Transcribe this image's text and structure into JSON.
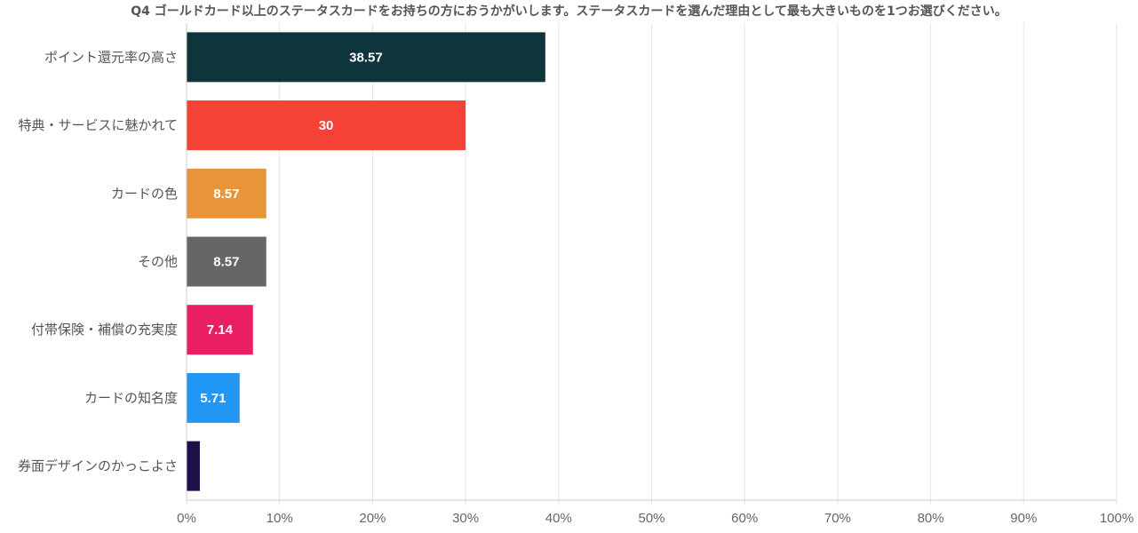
{
  "chart_data": {
    "type": "bar",
    "orientation": "horizontal",
    "title": "Q4 ゴールドカード以上のステータスカードをお持ちの方におうかがいします。ステータスカードを選んだ理由として最も大きいものを1つお選びください。",
    "categories": [
      "ポイント還元率の高さ",
      "特典・サービスに魅かれて",
      "カードの色",
      "その他",
      "付帯保険・補償の充実度",
      "カードの知名度",
      "券面デザインのかっこよさ"
    ],
    "values": [
      38.57,
      30,
      8.57,
      8.57,
      7.14,
      5.71,
      1.43
    ],
    "value_labels": [
      "38.57",
      "30",
      "8.57",
      "8.57",
      "7.14",
      "5.71",
      ""
    ],
    "colors": [
      "#0e343c",
      "#f44336",
      "#e8943a",
      "#666666",
      "#e91e63",
      "#2196f3",
      "#1f1147"
    ],
    "xlim": [
      0,
      100
    ],
    "x_ticks": [
      "0%",
      "10%",
      "20%",
      "30%",
      "40%",
      "50%",
      "60%",
      "70%",
      "80%",
      "90%",
      "100%"
    ],
    "grid": true,
    "legend": "none"
  }
}
